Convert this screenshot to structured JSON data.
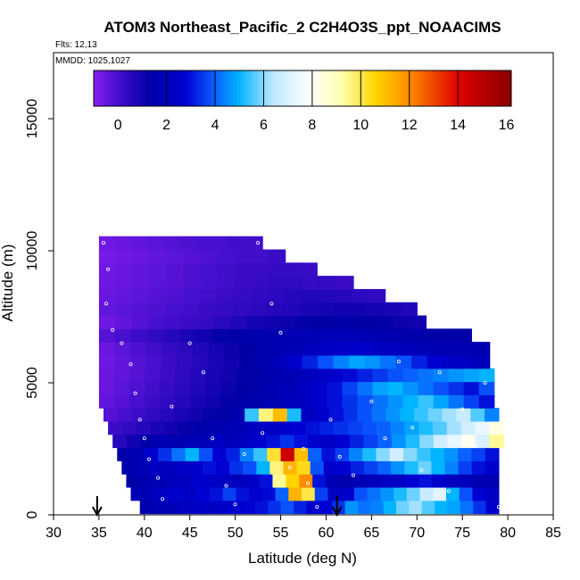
{
  "chart_data": {
    "type": "heatmap",
    "title": "ATOM3 Northeast_Pacific_2 C2H4O3S_ppt_NOAACIMS",
    "flights_label": "Flts: 12,13",
    "date_label": "MMDD: 1025,1027",
    "xlabel": "Latitude (deg N)",
    "ylabel": "Altitude (m)",
    "xlim": [
      30,
      85
    ],
    "ylim": [
      0,
      17500
    ],
    "x_ticks": [
      30,
      35,
      40,
      45,
      50,
      55,
      60,
      65,
      70,
      75,
      80,
      85
    ],
    "y_ticks": [
      0,
      5000,
      10000,
      15000
    ],
    "colorbar": {
      "range": [
        -1,
        16.2
      ],
      "ticks": [
        0,
        2,
        4,
        6,
        8,
        10,
        12,
        14,
        16
      ],
      "colors": {
        "c0": "#8a1ef0",
        "c1": "#3a0cc8",
        "c2": "#0000a6",
        "c3": "#0000d2",
        "c4": "#0a5aff",
        "c5": "#00b4ff",
        "c6": "#bfe8ff",
        "c7": "#ffffff",
        "c8": "#ffffb0",
        "c9": "#ffd400",
        "c10": "#ff8c00",
        "c11": "#e00000",
        "c12": "#8a0000"
      }
    },
    "arrow_latitudes": [
      34.8,
      61.2
    ],
    "heatmap_rows": [
      {
        "alt": 300,
        "x0": 39.5,
        "x1": 79,
        "values": [
          1.6,
          1.8,
          2.0,
          2.2,
          2.4,
          2.3,
          2.5,
          2.6,
          2.8,
          3.0,
          3.4,
          3.8,
          3.2,
          2.6,
          2.8,
          3.4,
          4.6,
          4.2,
          4.4,
          5.0,
          5.8,
          6.2,
          5.6,
          5.0,
          4.8,
          4.2,
          3.4,
          2.6
        ]
      },
      {
        "alt": 800,
        "x0": 38.5,
        "x1": 79,
        "values": [
          1.8,
          2.0,
          2.4,
          2.6,
          2.4,
          2.8,
          3.0,
          3.6,
          3.0,
          2.6,
          2.9,
          4.0,
          11.2,
          10.0,
          3.6,
          2.2,
          2.6,
          3.8,
          4.2,
          4.6,
          5.2,
          5.8,
          6.6,
          7.2,
          5.0,
          3.8,
          2.8,
          2.2
        ]
      },
      {
        "alt": 1300,
        "x0": 38,
        "x1": 79,
        "values": [
          1.4,
          1.6,
          1.8,
          2.0,
          2.2,
          2.6,
          2.4,
          2.2,
          2.0,
          2.4,
          3.0,
          9.4,
          10.6,
          12.0,
          3.0,
          1.8,
          1.6,
          1.8,
          2.0,
          2.2,
          2.4,
          2.8,
          3.0,
          2.6,
          2.2,
          2.0,
          1.8,
          1.6
        ]
      },
      {
        "alt": 1800,
        "x0": 37.5,
        "x1": 79,
        "values": [
          1.6,
          1.8,
          2.2,
          2.0,
          2.4,
          2.6,
          3.0,
          2.8,
          3.4,
          3.8,
          5.0,
          9.6,
          11.2,
          10.4,
          3.8,
          2.6,
          2.8,
          3.2,
          3.6,
          4.0,
          4.6,
          5.2,
          5.8,
          5.0,
          4.4,
          3.6,
          3.0,
          2.6
        ]
      },
      {
        "alt": 2300,
        "x0": 37,
        "x1": 79,
        "values": [
          1.4,
          1.8,
          2.6,
          3.4,
          4.2,
          5.0,
          3.8,
          2.8,
          3.2,
          4.4,
          5.4,
          10.2,
          14.5,
          11.0,
          4.0,
          3.0,
          3.6,
          4.4,
          5.2,
          6.0,
          6.8,
          6.0,
          5.4,
          5.0,
          4.6,
          4.0,
          3.6,
          3.0
        ]
      },
      {
        "alt": 2800,
        "x0": 36.5,
        "x1": 79.5,
        "values": [
          0.6,
          1.0,
          1.4,
          1.8,
          1.6,
          1.8,
          2.0,
          2.2,
          2.0,
          2.2,
          2.6,
          3.0,
          3.4,
          3.0,
          2.6,
          2.4,
          2.8,
          3.2,
          3.6,
          4.0,
          4.6,
          5.2,
          6.0,
          6.8,
          7.4,
          8.2,
          7.0,
          9.4
        ]
      },
      {
        "alt": 3300,
        "x0": 36,
        "x1": 79.5,
        "values": [
          0.2,
          0.4,
          0.6,
          0.8,
          1.0,
          1.2,
          1.4,
          1.6,
          1.8,
          2.0,
          2.2,
          2.4,
          2.6,
          2.8,
          3.0,
          3.2,
          3.4,
          3.6,
          3.8,
          4.0,
          4.4,
          4.8,
          5.2,
          5.6,
          6.2,
          6.8,
          7.4,
          8.4
        ]
      },
      {
        "alt": 3800,
        "x0": 35.5,
        "x1": 79,
        "values": [
          -0.2,
          0.0,
          0.2,
          0.4,
          0.6,
          0.8,
          1.0,
          1.2,
          1.4,
          1.6,
          5.4,
          9.6,
          11.0,
          5.2,
          2.2,
          2.6,
          3.0,
          3.4,
          3.8,
          4.2,
          4.6,
          5.0,
          5.4,
          5.8,
          6.2,
          6.6,
          5.6,
          4.4
        ]
      },
      {
        "alt": 4300,
        "x0": 35,
        "x1": 78.5,
        "values": [
          -0.4,
          -0.2,
          0.0,
          0.2,
          0.4,
          0.6,
          0.8,
          1.0,
          1.2,
          1.4,
          1.6,
          1.8,
          2.0,
          2.2,
          2.6,
          3.0,
          3.4,
          3.8,
          4.2,
          4.6,
          5.0,
          5.4,
          4.8,
          4.2,
          3.6,
          3.0
        ]
      },
      {
        "alt": 4800,
        "x0": 35,
        "x1": 78.5,
        "values": [
          -0.5,
          -0.3,
          -0.1,
          0.1,
          0.3,
          0.5,
          0.7,
          0.9,
          1.1,
          1.3,
          1.5,
          1.7,
          1.9,
          2.2,
          2.6,
          3.0,
          3.6,
          4.2,
          4.8,
          5.0,
          4.6,
          4.2,
          3.8,
          3.4,
          3.0,
          3.8
        ]
      },
      {
        "alt": 5300,
        "x0": 35,
        "x1": 78.5,
        "values": [
          -0.5,
          -0.4,
          -0.2,
          0.0,
          0.2,
          0.4,
          0.6,
          0.8,
          1.0,
          1.2,
          1.4,
          1.6,
          1.8,
          2.0,
          2.3,
          2.6,
          2.9,
          3.2,
          3.5,
          3.8,
          4.0,
          4.2,
          4.4,
          4.6,
          4.8,
          5.0
        ]
      },
      {
        "alt": 5800,
        "x0": 35,
        "x1": 78,
        "values": [
          -0.6,
          -0.4,
          -0.2,
          0.0,
          0.2,
          0.4,
          0.6,
          0.8,
          1.0,
          1.3,
          1.6,
          2.0,
          2.6,
          3.2,
          3.8,
          4.4,
          4.8,
          4.6,
          4.2,
          3.8,
          3.2,
          2.8,
          2.4,
          2.2,
          2.0
        ]
      },
      {
        "alt": 6300,
        "x0": 35,
        "x1": 78,
        "values": [
          -0.5,
          -0.3,
          -0.1,
          0.1,
          0.3,
          0.5,
          0.7,
          0.9,
          1.1,
          1.3,
          1.5,
          1.7,
          1.9,
          2.1,
          2.3,
          2.5,
          2.6,
          2.4,
          2.2,
          2.0,
          1.9,
          1.8,
          1.8,
          1.7,
          1.6
        ]
      },
      {
        "alt": 6800,
        "x0": 35,
        "x1": 76,
        "values": [
          -0.2,
          0.0,
          0.2,
          0.4,
          0.6,
          0.8,
          1.0,
          1.2,
          1.4,
          1.5,
          1.6,
          1.7,
          1.8,
          1.9,
          2.0,
          1.9,
          1.8,
          1.7,
          1.6,
          1.5,
          1.4,
          1.3,
          1.2
        ]
      },
      {
        "alt": 7300,
        "x0": 35,
        "x1": 71,
        "values": [
          -0.6,
          -0.4,
          -0.2,
          0.0,
          0.1,
          0.2,
          0.3,
          0.5,
          0.7,
          0.9,
          1.0,
          1.1,
          1.2,
          1.3,
          1.4,
          1.4,
          1.3,
          1.2,
          1.1,
          1.0
        ]
      },
      {
        "alt": 7800,
        "x0": 35,
        "x1": 70,
        "values": [
          -0.4,
          -0.3,
          -0.2,
          -0.1,
          0.0,
          0.1,
          0.2,
          0.3,
          0.4,
          0.5,
          0.6,
          0.7,
          0.8,
          0.9,
          1.0,
          1.0,
          0.9,
          0.8,
          0.7
        ]
      },
      {
        "alt": 8300,
        "x0": 35,
        "x1": 66.5,
        "values": [
          -0.5,
          -0.4,
          -0.3,
          -0.2,
          -0.1,
          0.0,
          0.1,
          0.2,
          0.3,
          0.4,
          0.5,
          0.6,
          0.7,
          0.7,
          0.6,
          0.5,
          0.4
        ]
      },
      {
        "alt": 8800,
        "x0": 35,
        "x1": 63,
        "values": [
          -0.6,
          -0.5,
          -0.4,
          -0.3,
          -0.2,
          -0.1,
          0.0,
          0.1,
          0.2,
          0.3,
          0.4,
          0.4,
          0.3,
          0.3,
          0.2
        ]
      },
      {
        "alt": 9300,
        "x0": 35,
        "x1": 59,
        "values": [
          -0.6,
          -0.5,
          -0.4,
          -0.3,
          -0.2,
          -0.1,
          0.0,
          0.1,
          0.2,
          0.2,
          0.3,
          0.3,
          0.2
        ]
      },
      {
        "alt": 9800,
        "x0": 35,
        "x1": 55.5,
        "values": [
          -0.7,
          -0.6,
          -0.5,
          -0.4,
          -0.3,
          -0.2,
          -0.1,
          0.0,
          0.1,
          0.1,
          0.2
        ]
      },
      {
        "alt": 10300,
        "x0": 35,
        "x1": 53,
        "values": [
          -0.6,
          -0.5,
          -0.4,
          -0.3,
          -0.2,
          -0.1,
          0.0,
          0.0,
          0.1,
          0.1
        ]
      }
    ],
    "points": [
      [
        35.5,
        10300
      ],
      [
        36,
        9300
      ],
      [
        35.8,
        8000
      ],
      [
        36.5,
        7000
      ],
      [
        37.5,
        6500
      ],
      [
        38.5,
        5700
      ],
      [
        39,
        4600
      ],
      [
        39.5,
        3600
      ],
      [
        40,
        2900
      ],
      [
        40.5,
        2100
      ],
      [
        41.5,
        1400
      ],
      [
        42,
        600
      ],
      [
        43,
        4100
      ],
      [
        45,
        6500
      ],
      [
        46.5,
        5400
      ],
      [
        47.5,
        2900
      ],
      [
        49,
        1100
      ],
      [
        50,
        400
      ],
      [
        51,
        2300
      ],
      [
        52.5,
        10300
      ],
      [
        53,
        3100
      ],
      [
        54,
        8000
      ],
      [
        55,
        6900
      ],
      [
        56,
        1800
      ],
      [
        57.5,
        2500
      ],
      [
        58,
        1200
      ],
      [
        59,
        300
      ],
      [
        60.5,
        3600
      ],
      [
        61.5,
        2200
      ],
      [
        63,
        1500
      ],
      [
        65,
        4300
      ],
      [
        66.5,
        2900
      ],
      [
        68,
        5800
      ],
      [
        69.5,
        3300
      ],
      [
        70.5,
        1700
      ],
      [
        72.5,
        5400
      ],
      [
        73.5,
        900
      ],
      [
        75,
        4000
      ],
      [
        76.5,
        2600
      ],
      [
        77.5,
        5000
      ],
      [
        78.5,
        3100
      ],
      [
        79,
        300
      ]
    ]
  }
}
